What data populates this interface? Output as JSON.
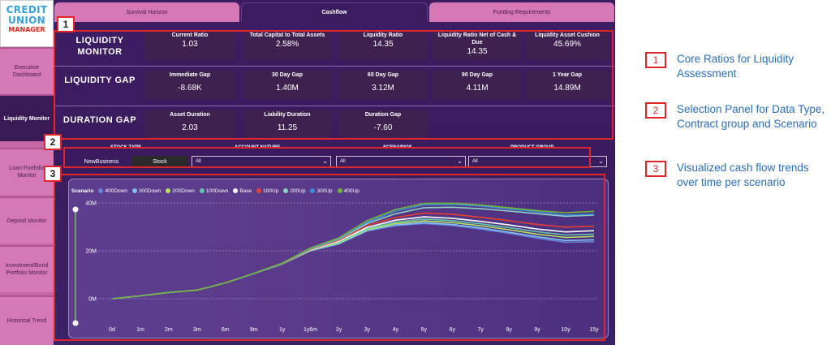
{
  "logo": {
    "line1": "CREDIT",
    "line2": "UNION",
    "line3": "MANAGER"
  },
  "sidebar": {
    "items": [
      {
        "label": "Executive Dashboard"
      },
      {
        "label": "Liquidity Moniter"
      },
      {
        "label": "Loan Portfolio Monitor"
      },
      {
        "label": "Deposit Monitor"
      },
      {
        "label": "Investment/Bond Portfolio Monitor"
      },
      {
        "label": "Historical Trend"
      }
    ]
  },
  "tabs": [
    {
      "label": "Survival Horizon"
    },
    {
      "label": "Cashflow"
    },
    {
      "label": "Funding Requirements"
    }
  ],
  "liquidity_monitor": {
    "label": "LIQUIDITY MONITOR",
    "metrics": [
      {
        "title": "Current Ratio",
        "value": "1.03"
      },
      {
        "title": "Total Capital to Total Assets",
        "value": "2.58%"
      },
      {
        "title": "Liquidity Ratio",
        "value": "14.35"
      },
      {
        "title": "Liquidity Ratio Net of Cash & Due",
        "value": "14.35"
      },
      {
        "title": "Liquidity Asset Cushion",
        "value": "45.69%"
      }
    ]
  },
  "liquidity_gap": {
    "label": "LIQUIDITY GAP",
    "metrics": [
      {
        "title": "Immediate Gap",
        "value": "-8.68K"
      },
      {
        "title": "30 Day Gap",
        "value": "1.40M"
      },
      {
        "title": "60 Day Gap",
        "value": "3.12M"
      },
      {
        "title": "90 Day Gap",
        "value": "4.11M"
      },
      {
        "title": "1 Year Gap",
        "value": "14.89M"
      }
    ]
  },
  "duration_gap": {
    "label": "DURATION GAP",
    "metrics": [
      {
        "title": "Asset Duration",
        "value": "2.03"
      },
      {
        "title": "Liability Duration",
        "value": "11.25"
      },
      {
        "title": "Duration Gap",
        "value": "-7.60"
      }
    ]
  },
  "selection": {
    "stock_type": {
      "label": "STOCK TYPE",
      "options": [
        "NewBusiness",
        "Stock"
      ],
      "selected": "Stock"
    },
    "account_nature": {
      "label": "ACCOUNT NATURE",
      "value": "All"
    },
    "scenarios": {
      "label": "SCENARIOS",
      "value": "All"
    },
    "product_group": {
      "label": "PRODUCT GROUP",
      "value": "All"
    }
  },
  "annotations": {
    "box1": "1",
    "box2": "2",
    "box3": "3",
    "side": [
      {
        "num": "1",
        "text": "Core Ratios for Liquidity Assessment"
      },
      {
        "num": "2",
        "text": "Selection Panel for Data Type, Contract group and Scenario"
      },
      {
        "num": "3",
        "text": "Visualized cash flow trends over time per scenario"
      }
    ]
  },
  "chart_data": {
    "type": "line",
    "legend_title": "Scenario",
    "categories": [
      "0d",
      "1m",
      "2m",
      "3m",
      "6m",
      "9m",
      "1y",
      "1y6m",
      "2y",
      "3y",
      "4y",
      "5y",
      "6y",
      "7y",
      "8y",
      "9y",
      "10y",
      "15y"
    ],
    "yticks": [
      "0M",
      "20M",
      "40M"
    ],
    "ylim": [
      0,
      40
    ],
    "series": [
      {
        "name": "400Down",
        "color": "#6a7fd8",
        "values": [
          0,
          1.2,
          2.6,
          3.6,
          6.6,
          10.5,
          14.5,
          20.0,
          22.8,
          28.3,
          30.5,
          31.4,
          30.6,
          29.1,
          27.3,
          25.3,
          23.6,
          23.8
        ]
      },
      {
        "name": "300Down",
        "color": "#7fc2ee",
        "values": [
          0,
          1.2,
          2.6,
          3.6,
          6.6,
          10.5,
          14.5,
          20.1,
          23.0,
          28.5,
          30.8,
          31.8,
          31.0,
          29.6,
          27.8,
          25.9,
          24.3,
          24.6
        ]
      },
      {
        "name": "200Down",
        "color": "#b8e35e",
        "values": [
          0,
          1.2,
          2.6,
          3.6,
          6.6,
          10.5,
          14.5,
          20.2,
          23.3,
          28.9,
          31.4,
          32.5,
          31.8,
          30.5,
          28.8,
          27.0,
          25.6,
          26.0
        ]
      },
      {
        "name": "100Down",
        "color": "#62c7b1",
        "values": [
          0,
          1.2,
          2.6,
          3.6,
          6.6,
          10.5,
          14.5,
          20.3,
          23.6,
          29.3,
          32.0,
          33.3,
          32.6,
          31.3,
          29.7,
          28.0,
          26.6,
          27.0
        ]
      },
      {
        "name": "Base",
        "color": "#ffffff",
        "values": [
          0,
          1.2,
          2.6,
          3.6,
          6.6,
          10.5,
          14.6,
          20.4,
          24.0,
          29.8,
          32.8,
          34.2,
          33.6,
          32.3,
          30.8,
          29.1,
          27.9,
          28.4
        ]
      },
      {
        "name": "100Up",
        "color": "#e53f30",
        "values": [
          0,
          1.2,
          2.6,
          3.6,
          6.6,
          10.5,
          14.6,
          20.6,
          24.4,
          30.6,
          33.9,
          35.8,
          35.3,
          34.0,
          32.6,
          31.0,
          29.9,
          30.3
        ]
      },
      {
        "name": "200Up",
        "color": "#8fd1c4",
        "values": [
          0,
          1.2,
          2.6,
          3.6,
          6.6,
          10.5,
          14.7,
          20.8,
          24.8,
          31.4,
          35.5,
          38.0,
          38.2,
          37.6,
          36.6,
          35.5,
          34.4,
          34.9
        ]
      },
      {
        "name": "300Up",
        "color": "#3f8ed8",
        "values": [
          0,
          1.2,
          2.6,
          3.6,
          6.6,
          10.5,
          14.7,
          21.0,
          25.1,
          32.0,
          36.6,
          39.2,
          39.4,
          38.7,
          37.5,
          36.3,
          34.9,
          35.3
        ]
      },
      {
        "name": "400Up",
        "color": "#71b43a",
        "values": [
          0,
          1.2,
          2.6,
          3.6,
          6.6,
          10.6,
          14.8,
          21.2,
          25.4,
          32.6,
          37.3,
          39.8,
          39.9,
          39.2,
          38.0,
          36.8,
          35.9,
          36.5
        ]
      }
    ]
  }
}
